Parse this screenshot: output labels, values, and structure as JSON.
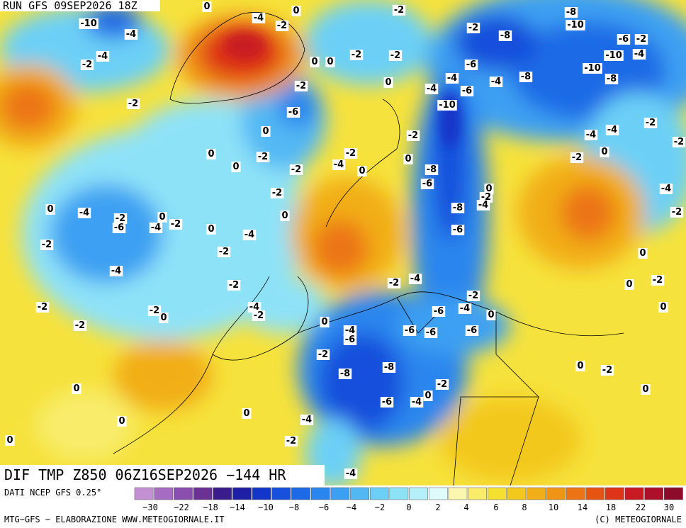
{
  "header": {
    "run": "RUN GFS 09SEP2026 18Z"
  },
  "footer": {
    "title": "DIF TMP Z850 06Z16SEP2026 −144 HR",
    "source": "DATI NCEP GFS 0.25°",
    "credit": "MTG−GFS − ELABORAZIONE WWW.METEOGIORNALE.IT",
    "copyright": "(C) METEOGIORNALE"
  },
  "colorbar": {
    "colors": [
      "#c58fd4",
      "#a66cc4",
      "#8a4fae",
      "#6b3294",
      "#3a1c8c",
      "#1f1fa6",
      "#1436c8",
      "#1650dc",
      "#1c6ae6",
      "#2a86ee",
      "#3ca0f2",
      "#52b8f4",
      "#6cd0f6",
      "#8ee2f8",
      "#b4f0fa",
      "#e0fbfb",
      "#fbf6b0",
      "#f8ec6a",
      "#f5df30",
      "#f3c81c",
      "#f2ae18",
      "#f09416",
      "#ec7414",
      "#e65412",
      "#de3418",
      "#c81a22",
      "#ac0f2a",
      "#8c0a2a"
    ],
    "labels": [
      "−30",
      "−22",
      "−18",
      "−14",
      "−10",
      "−8",
      "−6",
      "−4",
      "−2",
      "0",
      "2",
      "4",
      "6",
      "8",
      "10",
      "14",
      "18",
      "22",
      "30"
    ]
  },
  "contour_labels": [
    "-10",
    "-4",
    "-4",
    "-2",
    "-4",
    "-2",
    "0",
    "-2",
    "-8",
    "-10",
    "-2",
    "-8",
    "-6",
    "-2",
    "-10",
    "-4",
    "-2",
    "-2",
    "0",
    "0",
    "-6",
    "-10",
    "-8",
    "-4",
    "-4",
    "-8",
    "0",
    "-2",
    "-4",
    "-6",
    "-2",
    "-6",
    "-10",
    "0",
    "-2",
    "-4",
    "-4",
    "-2",
    "-2",
    "0",
    "-2",
    "-2",
    "0",
    "-2",
    "0",
    "0",
    "-2",
    "-4",
    "0",
    "-8",
    "-6",
    "0",
    "-2",
    "-4",
    "-4",
    "-2",
    "0",
    "-4",
    "-2",
    "-6",
    "0",
    "-4",
    "-2",
    "0",
    "0",
    "-4",
    "-8",
    "-2",
    "-6",
    "-2",
    "-2",
    "0",
    "-4",
    "-2",
    "0",
    "-4",
    "-2",
    "-2",
    "-2",
    "-2",
    "-2",
    "0",
    "-4",
    "-2",
    "0",
    "-6",
    "-4",
    "0",
    "-2",
    "0",
    "-4",
    "-6",
    "-6",
    "-6",
    "-6",
    "-2",
    "-8",
    "-8",
    "0",
    "-2",
    "0",
    "-2",
    "0",
    "0",
    "-6",
    "-4",
    "0",
    "-4",
    "0",
    "0",
    "-2",
    "-4",
    "0"
  ]
}
